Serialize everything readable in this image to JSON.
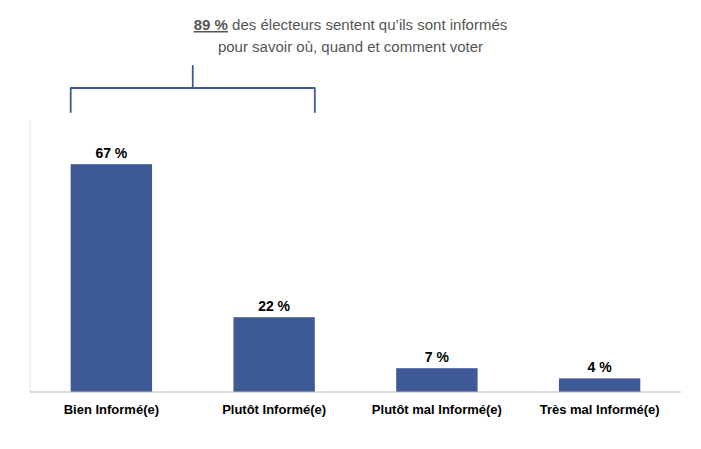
{
  "chart_data": {
    "type": "bar",
    "title": "89 % des électeurs sentent qu’ils sont informés",
    "subtitle": "pour savoir où, quand et comment voter",
    "categories": [
      "Bien Informé(e)",
      "Plutôt Informé(e)",
      "Plutôt mal Informé(e)",
      "Très mal Informé(e)"
    ],
    "values": [
      67,
      22,
      7,
      4
    ],
    "value_labels": [
      "67 %",
      "22 %",
      "7 %",
      "4 %"
    ],
    "data_labels": true,
    "color": "#3d5a96",
    "ylim": [
      0,
      80
    ],
    "tick_labels": "x",
    "grid": false
  }
}
